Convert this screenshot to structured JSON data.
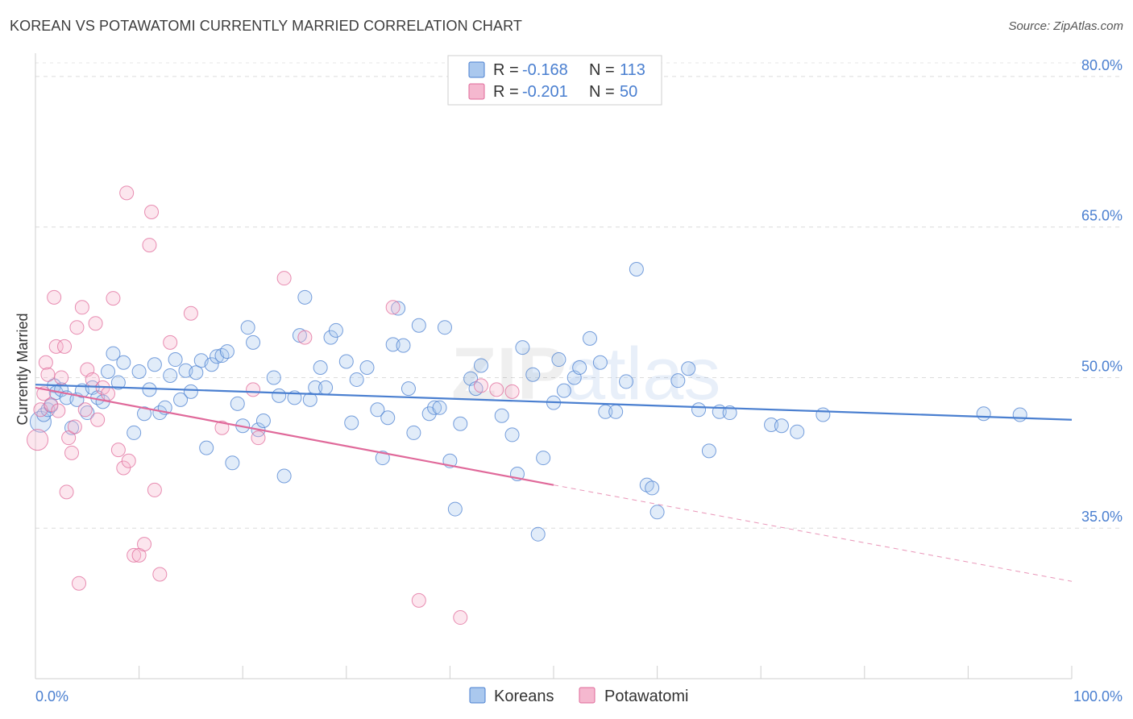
{
  "title": "KOREAN VS POTAWATOMI CURRENTLY MARRIED CORRELATION CHART",
  "source": "Source: ZipAtlas.com",
  "watermark": {
    "part1": "ZIP",
    "part2": "atlas"
  },
  "colors": {
    "blue": "#4a7fd0",
    "blue_fill": "#aac8ee",
    "pink": "#e0699a",
    "pink_fill": "#f5b8cf"
  },
  "legend": {
    "rows": [
      {
        "r_label": "R = ",
        "r_value": "-0.168",
        "n_label": "N = ",
        "n_value": "113"
      },
      {
        "r_label": "R = ",
        "r_value": "-0.201",
        "n_label": "N = ",
        "n_value": "50"
      }
    ],
    "bottom": [
      "Koreans",
      "Potawatomi"
    ]
  },
  "chart_data": {
    "type": "scatter",
    "ylabel": "Currently Married",
    "xlim": [
      0,
      100
    ],
    "ylim": [
      20,
      82
    ],
    "x_tick_labels": [
      "0.0%",
      "100.0%"
    ],
    "y_ticks": [
      35,
      50,
      65,
      80
    ],
    "y_tick_labels": [
      "35.0%",
      "50.0%",
      "65.0%",
      "80.0%"
    ],
    "legend_position": "top-center",
    "series": [
      {
        "name": "Koreans",
        "trend": {
          "x": [
            0,
            100
          ],
          "y": [
            49.3,
            45.8
          ]
        },
        "points": [
          [
            0.5,
            45.6
          ],
          [
            0.8,
            46.3
          ],
          [
            1.2,
            46.8
          ],
          [
            1.5,
            47.2
          ],
          [
            1.8,
            49.2
          ],
          [
            2.0,
            48.5
          ],
          [
            2.5,
            48.8
          ],
          [
            3.0,
            48.0
          ],
          [
            3.5,
            45.0
          ],
          [
            4.0,
            47.8
          ],
          [
            4.5,
            48.7
          ],
          [
            5.0,
            46.5
          ],
          [
            5.5,
            49.0
          ],
          [
            6.0,
            48.0
          ],
          [
            6.5,
            47.6
          ],
          [
            7.0,
            50.6
          ],
          [
            7.5,
            52.4
          ],
          [
            8.0,
            49.5
          ],
          [
            8.5,
            51.5
          ],
          [
            9.5,
            44.5
          ],
          [
            10.0,
            50.6
          ],
          [
            10.5,
            46.4
          ],
          [
            11.0,
            48.8
          ],
          [
            11.5,
            51.3
          ],
          [
            12.0,
            46.5
          ],
          [
            12.5,
            47.0
          ],
          [
            13.0,
            50.2
          ],
          [
            13.5,
            51.8
          ],
          [
            14.0,
            47.8
          ],
          [
            14.5,
            50.7
          ],
          [
            15.0,
            48.6
          ],
          [
            15.5,
            50.5
          ],
          [
            16.0,
            51.7
          ],
          [
            16.5,
            43.0
          ],
          [
            17.0,
            51.3
          ],
          [
            17.5,
            52.1
          ],
          [
            18.0,
            52.2
          ],
          [
            18.5,
            52.6
          ],
          [
            19.0,
            41.5
          ],
          [
            19.5,
            47.4
          ],
          [
            20.0,
            45.2
          ],
          [
            20.5,
            55.0
          ],
          [
            21.0,
            53.5
          ],
          [
            21.5,
            44.8
          ],
          [
            22.0,
            45.7
          ],
          [
            23.0,
            50.0
          ],
          [
            23.5,
            48.2
          ],
          [
            24.0,
            40.2
          ],
          [
            25.0,
            48.0
          ],
          [
            25.5,
            54.2
          ],
          [
            26.0,
            58.0
          ],
          [
            26.5,
            47.8
          ],
          [
            27.0,
            49.0
          ],
          [
            27.5,
            51.0
          ],
          [
            28.0,
            49.0
          ],
          [
            28.5,
            54.0
          ],
          [
            29.0,
            54.7
          ],
          [
            30.0,
            51.6
          ],
          [
            30.5,
            45.5
          ],
          [
            31.0,
            49.8
          ],
          [
            32.0,
            51.0
          ],
          [
            33.0,
            46.8
          ],
          [
            33.5,
            42.0
          ],
          [
            34.0,
            46.0
          ],
          [
            34.5,
            53.3
          ],
          [
            35.0,
            56.9
          ],
          [
            35.5,
            53.2
          ],
          [
            36.0,
            48.9
          ],
          [
            36.5,
            44.5
          ],
          [
            37.0,
            55.2
          ],
          [
            38.0,
            46.4
          ],
          [
            38.5,
            47.0
          ],
          [
            39.0,
            47.0
          ],
          [
            39.5,
            55.0
          ],
          [
            40.0,
            41.7
          ],
          [
            40.5,
            36.9
          ],
          [
            41.0,
            45.4
          ],
          [
            42.0,
            49.9
          ],
          [
            42.5,
            48.9
          ],
          [
            43.0,
            51.2
          ],
          [
            45.0,
            46.2
          ],
          [
            46.0,
            44.3
          ],
          [
            46.5,
            40.4
          ],
          [
            47.0,
            53.0
          ],
          [
            48.0,
            50.3
          ],
          [
            48.5,
            34.4
          ],
          [
            49.0,
            42.0
          ],
          [
            50.0,
            47.5
          ],
          [
            50.5,
            51.8
          ],
          [
            51.0,
            48.7
          ],
          [
            52.0,
            50.0
          ],
          [
            52.5,
            51.0
          ],
          [
            53.5,
            53.9
          ],
          [
            54.5,
            51.5
          ],
          [
            55.0,
            46.6
          ],
          [
            56.0,
            46.6
          ],
          [
            57.0,
            49.6
          ],
          [
            58.0,
            60.8
          ],
          [
            59.0,
            39.3
          ],
          [
            59.5,
            39.0
          ],
          [
            60.0,
            36.6
          ],
          [
            62.0,
            49.7
          ],
          [
            63.0,
            50.9
          ],
          [
            64.0,
            46.8
          ],
          [
            65.0,
            42.7
          ],
          [
            66.0,
            46.6
          ],
          [
            67.0,
            46.5
          ],
          [
            71.0,
            45.3
          ],
          [
            72.0,
            45.2
          ],
          [
            73.5,
            44.6
          ],
          [
            76.0,
            46.3
          ],
          [
            91.5,
            46.4
          ],
          [
            95.0,
            46.3
          ]
        ]
      },
      {
        "name": "Potawatomi",
        "trend": {
          "x": [
            0,
            50
          ],
          "y": [
            49.0,
            39.3
          ]
        },
        "trend_dashed": {
          "x": [
            50,
            100
          ],
          "y": [
            39.3,
            29.7
          ]
        },
        "points": [
          [
            0.2,
            43.8
          ],
          [
            0.5,
            46.8
          ],
          [
            0.8,
            48.4
          ],
          [
            1.0,
            51.5
          ],
          [
            1.2,
            50.3
          ],
          [
            1.5,
            47.3
          ],
          [
            1.8,
            58.0
          ],
          [
            2.0,
            53.1
          ],
          [
            2.2,
            46.7
          ],
          [
            2.5,
            50.0
          ],
          [
            2.8,
            53.1
          ],
          [
            3.0,
            38.6
          ],
          [
            3.2,
            44.0
          ],
          [
            3.5,
            42.5
          ],
          [
            3.8,
            45.1
          ],
          [
            4.0,
            55.0
          ],
          [
            4.2,
            29.5
          ],
          [
            4.5,
            57.0
          ],
          [
            4.8,
            46.8
          ],
          [
            5.0,
            50.8
          ],
          [
            5.5,
            49.8
          ],
          [
            5.8,
            55.4
          ],
          [
            6.0,
            45.8
          ],
          [
            6.5,
            49.0
          ],
          [
            7.0,
            48.4
          ],
          [
            7.5,
            57.9
          ],
          [
            8.0,
            42.8
          ],
          [
            8.5,
            41.0
          ],
          [
            8.8,
            68.4
          ],
          [
            9.0,
            41.7
          ],
          [
            9.5,
            32.3
          ],
          [
            10.0,
            32.3
          ],
          [
            10.5,
            33.4
          ],
          [
            11.0,
            63.2
          ],
          [
            11.2,
            66.5
          ],
          [
            11.5,
            38.8
          ],
          [
            12.0,
            30.4
          ],
          [
            13.0,
            53.5
          ],
          [
            15.0,
            56.4
          ],
          [
            18.0,
            45.0
          ],
          [
            21.0,
            48.8
          ],
          [
            21.5,
            44.0
          ],
          [
            24.0,
            59.9
          ],
          [
            26.0,
            54.0
          ],
          [
            34.5,
            57.0
          ],
          [
            37.0,
            27.8
          ],
          [
            41.0,
            26.1
          ],
          [
            43.0,
            49.2
          ],
          [
            44.5,
            48.8
          ],
          [
            46.0,
            48.6
          ]
        ]
      }
    ]
  }
}
